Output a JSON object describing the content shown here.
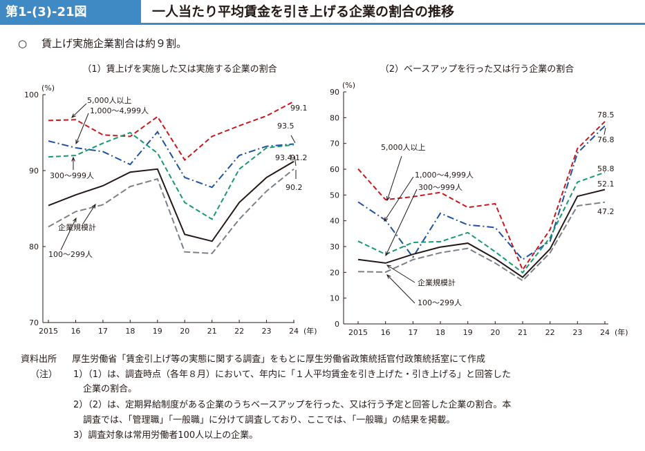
{
  "header": {
    "figure_number": "第1-(3)-21図",
    "title": "一人当たり平均賃金を引き上げる企業の割合の推移"
  },
  "summary": {
    "bullet": "○",
    "text": "賃上げ実施企業割合は約９割。"
  },
  "chart_data": [
    {
      "type": "line",
      "title": "（1）賃上げを実施した又は実施する企業の割合",
      "ylabel": "(%)",
      "xlabel": "(年)",
      "x": [
        "2015",
        "16",
        "17",
        "18",
        "19",
        "20",
        "21",
        "22",
        "23",
        "24"
      ],
      "ylim": [
        70,
        100
      ],
      "yticks": [
        70,
        80,
        90,
        100
      ],
      "grid": false,
      "series": [
        {
          "name": "5,000人以上",
          "color": "#c8161d",
          "dash": "dashed",
          "values": [
            96.6,
            96.7,
            94.7,
            94.5,
            97.1,
            91.4,
            94.5,
            95.9,
            97.2,
            99.1
          ]
        },
        {
          "name": "1,000～4,999人",
          "color": "#1d50a2",
          "dash": "dashdot",
          "values": [
            93.9,
            93.0,
            92.5,
            90.8,
            95.1,
            89.1,
            87.8,
            92.0,
            93.2,
            93.5
          ]
        },
        {
          "name": "300～999人",
          "color": "#159a6e",
          "dash": "dashed",
          "values": [
            91.8,
            92.0,
            93.6,
            95.0,
            92.3,
            85.8,
            83.6,
            90.2,
            93.0,
            93.4
          ]
        },
        {
          "name": "企業規模計",
          "color": "#231815",
          "dash": "solid",
          "values": [
            85.4,
            86.8,
            88.0,
            89.8,
            90.2,
            81.6,
            80.7,
            85.8,
            89.1,
            91.2
          ]
        },
        {
          "name": "100～299人",
          "color": "#7b7f87",
          "dash": "longdash",
          "values": [
            82.6,
            84.6,
            85.5,
            87.9,
            88.9,
            79.3,
            79.1,
            83.6,
            87.3,
            90.2
          ]
        }
      ],
      "annotations": [
        "99.1",
        "93.5",
        "93.4",
        "91.2",
        "90.2"
      ],
      "legend_labels": [
        "5,000人以上",
        "1,000～4,999人",
        "300～999人",
        "企業規模計",
        "100～299人"
      ]
    },
    {
      "type": "line",
      "title": "（2）ベースアップを行った又は行う企業の割合",
      "ylabel": "(%)",
      "xlabel": "(年)",
      "x": [
        "2015",
        "16",
        "17",
        "18",
        "19",
        "20",
        "21",
        "22",
        "23",
        "24"
      ],
      "ylim": [
        0,
        90
      ],
      "yticks": [
        0,
        10,
        20,
        30,
        40,
        50,
        60,
        70,
        80,
        90
      ],
      "grid": false,
      "series": [
        {
          "name": "5,000人以上",
          "color": "#c8161d",
          "dash": "dashed",
          "values": [
            60.1,
            48.2,
            49.3,
            51.0,
            45.2,
            46.6,
            21.0,
            36.6,
            68.0,
            78.5
          ]
        },
        {
          "name": "1,000～4,999人",
          "color": "#1d50a2",
          "dash": "dashdot",
          "values": [
            47.3,
            40.2,
            25.9,
            42.9,
            38.4,
            37.4,
            25.0,
            32.1,
            66.3,
            76.8
          ]
        },
        {
          "name": "300～999人",
          "color": "#159a6e",
          "dash": "dashed",
          "values": [
            32.1,
            27.0,
            31.6,
            31.9,
            35.4,
            28.0,
            19.9,
            33.5,
            55.0,
            58.8
          ]
        },
        {
          "name": "企業規模計",
          "color": "#231815",
          "dash": "solid",
          "values": [
            25.0,
            23.6,
            27.0,
            29.8,
            31.3,
            25.3,
            18.1,
            29.1,
            49.5,
            52.1
          ]
        },
        {
          "name": "100～299人",
          "color": "#7b7f87",
          "dash": "longdash",
          "values": [
            20.3,
            20.1,
            24.9,
            27.6,
            29.3,
            23.6,
            16.8,
            27.6,
            45.8,
            47.2
          ]
        }
      ],
      "annotations": [
        "78.5",
        "76.8",
        "58.8",
        "52.1",
        "47.2"
      ],
      "legend_labels": [
        "5,000人以上",
        "1,000～4,999人",
        "300～999人",
        "企業規模計",
        "100～299人"
      ]
    }
  ],
  "notes": {
    "source_label": "資料出所",
    "source_text": "厚生労働省「賃金引上げ等の実態に関する調査」をもとに厚生労働省政策統括官付政策統括室にて作成",
    "note_label": "（注）",
    "items": [
      "1）（1）は、調査時点（各年８月）において、年内に「１人平均賃金を引き上げた・引き上げる」と回答した",
      "企業の割合。",
      "2）（2）は、定期昇給制度がある企業のうちベースアップを行った、又は行う予定と回答した企業の割合。本",
      "調査では、「管理職」「一般職」に分けて調査しており、ここでは、「一般職」の結果を掲載。",
      "3）調査対象は常用労働者100人以上の企業。"
    ]
  }
}
